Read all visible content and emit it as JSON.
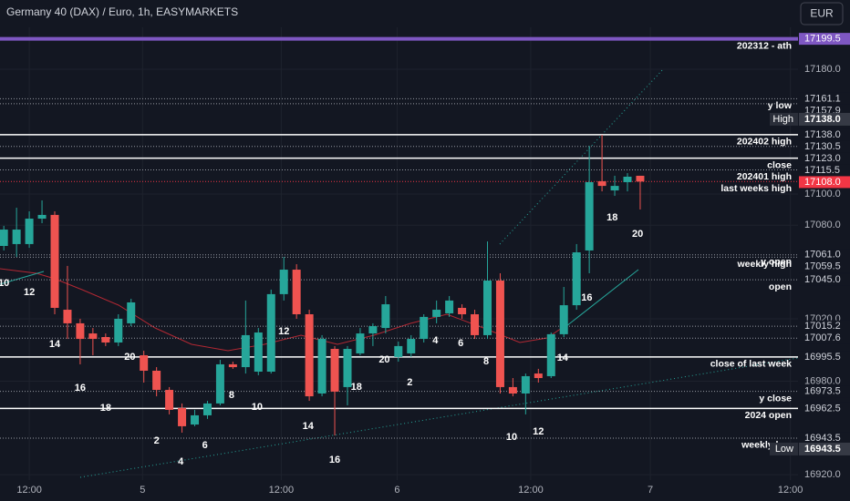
{
  "chart_data": {
    "type": "candlestick",
    "title": "Germany 40 (DAX) / Euro, 1h, EASYMARKETS",
    "currency": "EUR",
    "up_color": "#26a69a",
    "down_color": "#ef5350",
    "grid": true,
    "xlim": [
      -0.3,
      62.4
    ],
    "xticks": [
      {
        "value": 2,
        "label": "12:00"
      },
      {
        "value": 10.9,
        "label": "5"
      },
      {
        "value": 21.8,
        "label": "12:00"
      },
      {
        "value": 30.9,
        "label": "6"
      },
      {
        "value": 41.4,
        "label": "12:00"
      },
      {
        "value": 50.8,
        "label": "7"
      },
      {
        "value": 61.8,
        "label": "12:00"
      }
    ],
    "ylim": [
      16916.6,
      17224.4
    ],
    "yticks": [
      {
        "value": 17180,
        "label": "17180.0"
      },
      {
        "value": 17100,
        "label": "17100.0"
      },
      {
        "value": 17080,
        "label": "17080.0"
      },
      {
        "value": 17020,
        "label": "17020.0"
      },
      {
        "value": 16980,
        "label": "16980.0"
      },
      {
        "value": 16920,
        "label": "16920.0"
      }
    ],
    "open": [
      17066.7,
      17067.9,
      17067.9,
      17084.2,
      17086.6,
      17025.8,
      17017.1,
      17010.6,
      17008.3,
      17004.8,
      17017.1,
      16996.6,
      16986.7,
      16974.4,
      16962.8,
      16952.2,
      16958.1,
      16965.7,
      16990.8,
      16989.0,
      16986.1,
      16986.1,
      17035.8,
      17051.5,
      17022.9,
      16972.1,
      17000.7,
      16976.2,
      16997.8,
      17010.6,
      17014.1,
      16995.5,
      16997.8,
      17007.1,
      17021.2,
      17023.5,
      17027.0,
      17022.9,
      17009.5,
      17044.5,
      16976.2,
      16972.1,
      16984.9,
      16983.2,
      17010.1,
      17028.7,
      17063.8,
      17108.2,
      17102.3,
      17107.6,
      17111.7
    ],
    "high": [
      17079.6,
      17091.2,
      17088.9,
      17095.9,
      17088.9,
      17053.9,
      17020.0,
      17014.1,
      17010.6,
      17022.9,
      17032.8,
      16999.5,
      16989.0,
      16976.2,
      16965.7,
      16961.6,
      16967.4,
      16993.7,
      16992.5,
      17031.7,
      17014.1,
      17038.7,
      17059.7,
      17055.0,
      17025.8,
      17009.5,
      17002.5,
      17002.5,
      17014.1,
      17017.1,
      17034.6,
      17005.4,
      17009.5,
      17022.9,
      17031.7,
      17034.6,
      17029.3,
      17025.8,
      17069.6,
      17049.2,
      16982.0,
      16984.9,
      16987.9,
      17011.2,
      17040.4,
      17067.9,
      17130.9,
      17138.0,
      17111.7,
      17113.4,
      17111.7
    ],
    "low": [
      17063.8,
      17059.7,
      17065.5,
      17081.3,
      17022.9,
      17007.1,
      16990.8,
      16996.6,
      17002.5,
      17002.5,
      17015.3,
      16979.1,
      16970.3,
      16958.7,
      16947.0,
      16951.1,
      16955.8,
      16964.5,
      16987.9,
      16984.9,
      16983.8,
      16984.9,
      17031.7,
      17020.0,
      16967.4,
      16970.3,
      16945.2,
      16964.5,
      16996.6,
      17002.5,
      17010.6,
      16992.5,
      16995.5,
      17004.8,
      17017.1,
      17021.2,
      17020.0,
      17007.1,
      17007.1,
      16972.1,
      16970.3,
      16958.7,
      16979.1,
      16982.0,
      17008.3,
      17025.8,
      17049.2,
      17101.7,
      17098.8,
      17101.7,
      17090.1
    ],
    "close": [
      17077.2,
      17077.2,
      17084.2,
      17086.6,
      17027.0,
      17017.1,
      17007.1,
      17007.1,
      17004.8,
      17020.0,
      17030.5,
      16986.7,
      16974.4,
      16961.6,
      16951.1,
      16958.1,
      16965.7,
      16990.8,
      16989.0,
      17009.5,
      17011.2,
      17035.8,
      17051.5,
      17022.9,
      16970.3,
      17007.1,
      16973.3,
      17000.7,
      17010.6,
      17015.3,
      17029.3,
      17002.5,
      17007.1,
      17021.2,
      17025.8,
      17031.7,
      17022.9,
      17009.5,
      17044.5,
      16976.2,
      16972.1,
      16983.2,
      16982.0,
      17010.1,
      17028.7,
      17062.6,
      17107.6,
      17105.2,
      17105.2,
      17111.1,
      17108.0
    ],
    "annotations": [
      {
        "text": "10",
        "x": 0,
        "y": 17042.8
      },
      {
        "text": "12",
        "x": 2,
        "y": 17036.9
      },
      {
        "text": "14",
        "x": 4,
        "y": 17003.6
      },
      {
        "text": "16",
        "x": 6,
        "y": 16975.6
      },
      {
        "text": "18",
        "x": 8,
        "y": 16962.8
      },
      {
        "text": "20",
        "x": 9.9,
        "y": 16995.5
      },
      {
        "text": "2",
        "x": 12,
        "y": 16941.7
      },
      {
        "text": "4",
        "x": 13.9,
        "y": 16928.3
      },
      {
        "text": "6",
        "x": 15.8,
        "y": 16938.8
      },
      {
        "text": "8",
        "x": 17.9,
        "y": 16970.9
      },
      {
        "text": "10",
        "x": 19.9,
        "y": 16963.3
      },
      {
        "text": "12",
        "x": 22,
        "y": 17011.8
      },
      {
        "text": "14",
        "x": 23.9,
        "y": 16951.1
      },
      {
        "text": "16",
        "x": 26,
        "y": 16929.5
      },
      {
        "text": "18",
        "x": 27.7,
        "y": 16976.2
      },
      {
        "text": "20",
        "x": 29.9,
        "y": 16993.7
      },
      {
        "text": "2",
        "x": 31.9,
        "y": 16979.1
      },
      {
        "text": "4",
        "x": 33.9,
        "y": 17006.0
      },
      {
        "text": "6",
        "x": 35.9,
        "y": 17004.2
      },
      {
        "text": "8",
        "x": 37.9,
        "y": 16992.5
      },
      {
        "text": "10",
        "x": 39.9,
        "y": 16944.1
      },
      {
        "text": "12",
        "x": 42,
        "y": 16947.6
      },
      {
        "text": "14",
        "x": 43.9,
        "y": 16994.9
      },
      {
        "text": "16",
        "x": 45.8,
        "y": 17033.4
      },
      {
        "text": "18",
        "x": 47.8,
        "y": 17084.8
      },
      {
        "text": "20",
        "x": 49.8,
        "y": 17074.3
      }
    ],
    "levels": [
      {
        "value": 17199.5,
        "label": "17199.5",
        "text": "202312 - ath",
        "style": "thick",
        "color": "#7e57c2"
      },
      {
        "value": 17161.1,
        "label": "17161.1",
        "text": "y low",
        "style": "dotted"
      },
      {
        "value": 17157.9,
        "label": "17157.9",
        "style": "dotted"
      },
      {
        "value": 17138.0,
        "label": "17138.0",
        "text": "202402 high",
        "style": "solid"
      },
      {
        "value": 17130.5,
        "label": "17130.5",
        "style": "dotted"
      },
      {
        "value": 17123.0,
        "label": "17123.0",
        "text": "close",
        "style": "solid"
      },
      {
        "value": 17115.5,
        "label": "17115.5",
        "text": "202401 high",
        "style": "dotted"
      },
      {
        "value": 17108.0,
        "label": "17108.0",
        "text": "last weeks high",
        "style": "dotted",
        "color": "#f23645"
      },
      {
        "value": 17061.0,
        "label": "17061.0",
        "text": "y open",
        "style": "dotted"
      },
      {
        "value": 17059.5,
        "label": "17059.5",
        "text": "weekly high",
        "style": "dotted"
      },
      {
        "value": 17045.0,
        "label": "17045.0",
        "text": "open",
        "style": "dotted"
      },
      {
        "value": 17015.2,
        "label": "17015.2",
        "style": "dotted"
      },
      {
        "value": 17007.6,
        "label": "17007.6",
        "style": "dotted"
      },
      {
        "value": 16995.5,
        "label": "16995.5",
        "text": "close of last week",
        "style": "solid"
      },
      {
        "value": 16973.5,
        "label": "16973.5",
        "text": "y close",
        "style": "dotted"
      },
      {
        "value": 16962.5,
        "label": "16962.5",
        "text": "2024 open",
        "style": "solid"
      },
      {
        "value": 16943.5,
        "label": "16943.5",
        "text": "weekly low",
        "style": "dotted"
      }
    ],
    "high_marker": {
      "label": "High",
      "value": 17138.0,
      "value_label": "17138.0"
    },
    "low_marker": {
      "label": "Low",
      "value": 16943.5,
      "value_label": "16943.5"
    }
  }
}
